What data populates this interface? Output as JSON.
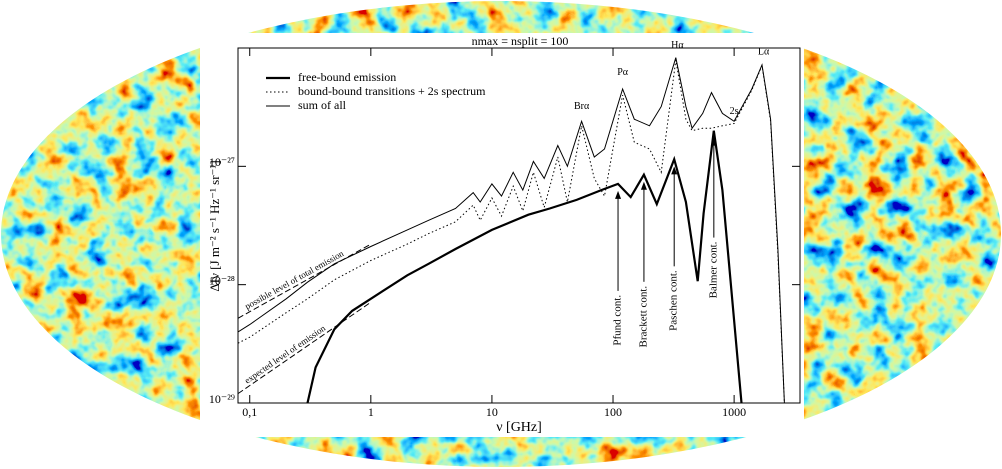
{
  "chart_data": {
    "type": "line",
    "title": "nmax = nsplit = 100",
    "x_label": "ν  [GHz]",
    "y_label": "ΔIν  [J m⁻² s⁻¹ Hz⁻¹ sr⁻¹]",
    "x_scale": "log",
    "y_scale": "log",
    "xlim": [
      0.08,
      3500
    ],
    "ylim": [
      1e-29,
      1e-26
    ],
    "xticks": [
      {
        "value": 0.1,
        "label": "0,1"
      },
      1,
      10,
      100,
      1000
    ],
    "yticks": [
      {
        "value": 1e-29,
        "label": "10⁻²⁹"
      },
      {
        "value": 1e-28,
        "label": "10⁻²⁸"
      },
      {
        "value": 1e-27,
        "label": "10⁻²⁷"
      }
    ],
    "legend": "upper left",
    "series": [
      {
        "name": "free-bound emission",
        "color": "#000000",
        "width": 2.2,
        "dash": "solid",
        "x": [
          0.3,
          0.35,
          0.5,
          0.7,
          1,
          2,
          3,
          5,
          10,
          20,
          30,
          50,
          80,
          110,
          140,
          180,
          230,
          320,
          400,
          500,
          560,
          680,
          800,
          1000,
          1150
        ],
        "values": [
          1e-29,
          2e-29,
          4.2e-29,
          6e-29,
          7.6e-29,
          1.2e-28,
          1.5e-28,
          2e-28,
          2.9e-28,
          3.9e-28,
          4.4e-28,
          5.2e-28,
          6.3e-28,
          7.1e-28,
          5.5e-28,
          8.5e-28,
          4.8e-28,
          1.15e-27,
          5e-28,
          1.07e-28,
          4e-28,
          2e-27,
          6.3e-28,
          5e-29,
          1e-29
        ]
      },
      {
        "name": "bound-bound transitions + 2s spectrum",
        "color": "#000000",
        "width": 1,
        "dash": "dotted",
        "x": [
          0.08,
          0.1,
          0.2,
          0.3,
          0.5,
          1,
          2,
          3,
          5,
          7,
          8,
          10,
          12,
          15,
          18,
          22,
          27,
          35,
          42,
          55,
          70,
          85,
          120,
          150,
          200,
          250,
          330,
          400,
          450,
          550,
          650,
          800,
          1000,
          1400,
          1700,
          2000,
          2300,
          2600
        ],
        "values": [
          3.2e-29,
          3.6e-29,
          5.8e-29,
          7.6e-29,
          1.1e-28,
          1.6e-28,
          2.2e-28,
          2.7e-28,
          3.4e-28,
          4.7e-28,
          3.5e-28,
          5.4e-28,
          3.8e-28,
          6.8e-28,
          4.2e-28,
          8.9e-28,
          4.5e-28,
          1.2e-27,
          5e-28,
          2.2e-27,
          7.9e-28,
          5.6e-28,
          4e-27,
          1.6e-27,
          1.4e-27,
          8.9e-28,
          7.9e-27,
          2.5e-27,
          2e-27,
          2.1e-27,
          2.1e-27,
          2.2e-27,
          2.3e-27,
          4.4e-27,
          7.1e-27,
          2.4e-27,
          1.8e-28,
          1e-29
        ]
      },
      {
        "name": "sum of all",
        "color": "#000000",
        "width": 1,
        "dash": "solid",
        "x": [
          0.08,
          0.1,
          0.2,
          0.3,
          0.5,
          1,
          2,
          3,
          5,
          7,
          8,
          10,
          12,
          15,
          18,
          22,
          27,
          35,
          42,
          55,
          70,
          85,
          120,
          150,
          200,
          250,
          330,
          400,
          450,
          550,
          650,
          800,
          1000,
          1400,
          1700,
          2000,
          2300,
          2600
        ],
        "values": [
          3.98e-29,
          4.6e-29,
          7.6e-29,
          1.05e-28,
          1.5e-28,
          2.1e-28,
          2.9e-28,
          3.5e-28,
          4.4e-28,
          6e-28,
          5e-28,
          7.1e-28,
          5.6e-28,
          8.9e-28,
          6.3e-28,
          1.1e-27,
          7.9e-28,
          1.5e-27,
          1e-27,
          2.4e-27,
          1.2e-27,
          1.4e-27,
          4.5e-27,
          2.5e-27,
          2.2e-27,
          3.2e-27,
          8.3e-27,
          3.2e-27,
          2.1e-27,
          2.8e-27,
          4.2e-27,
          2.8e-27,
          2.4e-27,
          4.5e-27,
          7.2e-27,
          2.5e-27,
          2e-28,
          1e-29
        ]
      }
    ],
    "reference_lines": [
      {
        "label": "possible level of total emission",
        "x": [
          0.08,
          1
        ],
        "values": [
          5.2e-29,
          2.2e-28
        ]
      },
      {
        "label": "expected level of emission",
        "x": [
          0.08,
          1
        ],
        "values": [
          1.2e-29,
          7.1e-29
        ]
      }
    ],
    "line_labels": [
      {
        "text": "Brα",
        "x": 55,
        "y": 3.2e-27
      },
      {
        "text": "Pα",
        "x": 120,
        "y": 6.2e-27
      },
      {
        "text": "Hα",
        "x": 340,
        "y": 1.05e-26
      },
      {
        "text": "2s",
        "x": 1000,
        "y": 2.9e-27
      },
      {
        "text": "Lα",
        "x": 1750,
        "y": 9.2e-27
      }
    ],
    "arrows": [
      {
        "text": "Pfund cont.",
        "x": 110,
        "y": 6.2e-28
      },
      {
        "text": "Brackett cont.",
        "x": 180,
        "y": 7.4e-28
      },
      {
        "text": "Paschen cont.",
        "x": 320,
        "y": 1e-27
      },
      {
        "text": "Balmer cont.",
        "x": 680,
        "y": 1.75e-27
      }
    ]
  }
}
